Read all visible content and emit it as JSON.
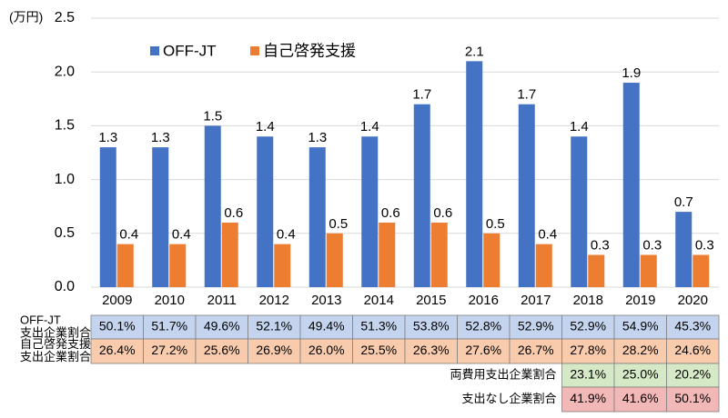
{
  "chart_data": {
    "type": "bar",
    "y_label": "(万円)",
    "categories": [
      "2009",
      "2010",
      "2011",
      "2012",
      "2013",
      "2014",
      "2015",
      "2016",
      "2017",
      "2018",
      "2019",
      "2020"
    ],
    "series": [
      {
        "name": "OFF-JT",
        "color": "#4472c4",
        "values": [
          1.3,
          1.3,
          1.5,
          1.4,
          1.3,
          1.4,
          1.7,
          2.1,
          1.7,
          1.4,
          1.9,
          0.7
        ]
      },
      {
        "name": "自己啓発支援",
        "color": "#ed7d31",
        "values": [
          0.4,
          0.4,
          0.6,
          0.4,
          0.5,
          0.6,
          0.6,
          0.5,
          0.4,
          0.3,
          0.3,
          0.3
        ]
      }
    ],
    "ylim": [
      0,
      2.5
    ],
    "yticks": [
      {
        "value": 0,
        "label": "0.0"
      },
      0.5,
      {
        "value": 1,
        "label": "1.0"
      },
      1.5,
      {
        "value": 2,
        "label": "2.0"
      },
      2.5
    ],
    "grid": true,
    "legend": "top-left"
  },
  "table": {
    "rows": [
      {
        "label": [
          "OFF-JT",
          "支出企業割合"
        ],
        "color": "#c5d4ee",
        "cells": [
          "50.1%",
          "51.7%",
          "49.6%",
          "52.1%",
          "49.4%",
          "51.3%",
          "53.8%",
          "52.8%",
          "52.9%",
          "52.9%",
          "54.9%",
          "45.3%"
        ]
      },
      {
        "label": [
          "自己啓発支援",
          "支出企業割合"
        ],
        "color": "#f8cbad",
        "cells": [
          "26.4%",
          "27.2%",
          "25.6%",
          "26.9%",
          "26.0%",
          "25.5%",
          "26.3%",
          "27.6%",
          "26.7%",
          "27.8%",
          "28.2%",
          "24.6%"
        ]
      },
      {
        "label": [
          "両費用支出企業割合"
        ],
        "color": "#d6e9c6",
        "cells": [
          "23.1%",
          "25.0%",
          "20.2%"
        ]
      },
      {
        "label": [
          "支出なし企業割合"
        ],
        "color": "#f2b8b8",
        "cells": [
          "41.9%",
          "41.6%",
          "50.1%"
        ]
      }
    ]
  }
}
